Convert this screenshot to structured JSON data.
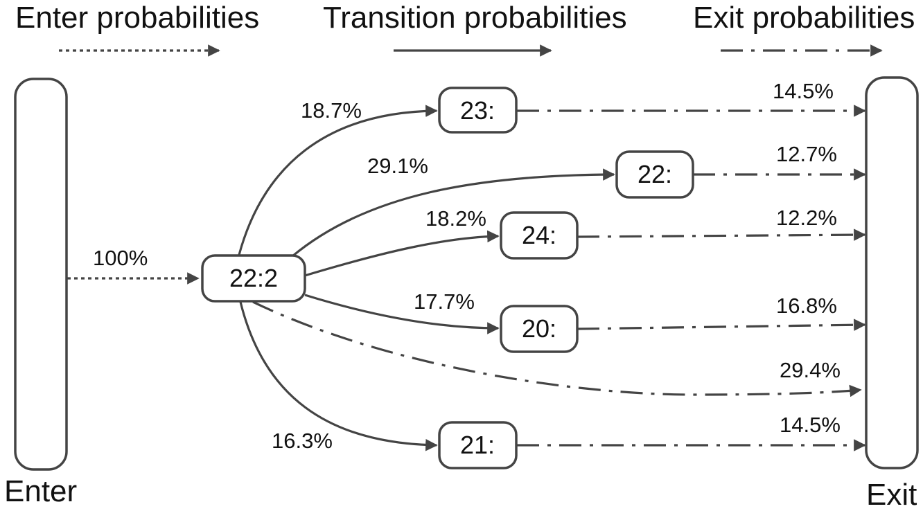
{
  "legend": {
    "enter": "Enter probabilities",
    "transition": "Transition probabilities",
    "exit": "Exit probabilities"
  },
  "terminals": {
    "enter": "Enter",
    "exit": "Exit"
  },
  "source_node": {
    "label": "22:2",
    "enter_prob": "100%",
    "direct_exit_prob": "29.4%"
  },
  "states": [
    {
      "label": "23:",
      "transition": "18.7%",
      "exit": "14.5%"
    },
    {
      "label": "22:",
      "transition": "29.1%",
      "exit": "12.7%"
    },
    {
      "label": "24:",
      "transition": "18.2%",
      "exit": "12.2%"
    },
    {
      "label": "20:",
      "transition": "17.7%",
      "exit": "16.8%"
    },
    {
      "label": "21:",
      "transition": "16.3%",
      "exit": "14.5%"
    }
  ],
  "colors": {
    "stroke": "#444444",
    "text": "#111111",
    "background": "#ffffff"
  }
}
